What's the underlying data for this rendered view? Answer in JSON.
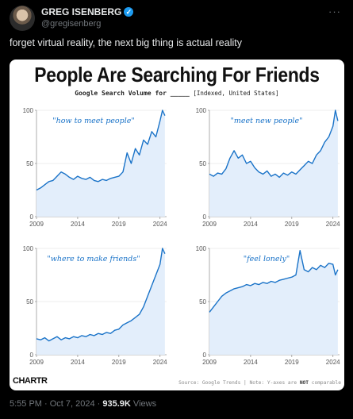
{
  "tweet": {
    "author_name": "GREG ISENBERG",
    "handle": "@gregisenberg",
    "text": "forget virtual reality, the next big thing is actual reality",
    "time": "5:55 PM · Oct 7, 2024 · ",
    "views": "935.9K",
    "views_label": " Views",
    "more_icon": "···",
    "verified_icon": "✓"
  },
  "card": {
    "title": "People Are Searching For Friends",
    "subtitle_main": "Google Search Volume for _____",
    "subtitle_note": "[Indexed, United States]",
    "source": "Source: Google Trends | Note: Y-axes are ",
    "source_not": "NOT",
    "source_end": " comparable",
    "logo": "CHARTR",
    "line_color": "#1a73c8",
    "fill_color": "#e3eefb"
  },
  "chart_data": [
    {
      "type": "area",
      "title": "\"how to meet people\"",
      "x_ticks": [
        "2009",
        "2014",
        "2019",
        "2024"
      ],
      "y_ticks": [
        "0",
        "50",
        "100"
      ],
      "xlim": [
        2009,
        2024.8
      ],
      "ylim": [
        0,
        100
      ],
      "x": [
        2009.0,
        2009.5,
        2010.0,
        2010.5,
        2011.0,
        2011.5,
        2012.0,
        2012.5,
        2013.0,
        2013.5,
        2014.0,
        2014.5,
        2015.0,
        2015.5,
        2016.0,
        2016.5,
        2017.0,
        2017.5,
        2018.0,
        2018.5,
        2019.0,
        2019.5,
        2020.0,
        2020.5,
        2021.0,
        2021.5,
        2022.0,
        2022.5,
        2023.0,
        2023.5,
        2024.0,
        2024.3,
        2024.6
      ],
      "values": [
        25,
        27,
        30,
        33,
        34,
        38,
        42,
        40,
        37,
        35,
        38,
        36,
        35,
        37,
        34,
        33,
        35,
        34,
        36,
        37,
        38,
        42,
        60,
        50,
        64,
        58,
        72,
        68,
        80,
        75,
        90,
        100,
        95
      ]
    },
    {
      "type": "area",
      "title": "\"meet new people\"",
      "x_ticks": [
        "2009",
        "2014",
        "2019",
        "2024"
      ],
      "y_ticks": [
        "0",
        "50",
        "100"
      ],
      "xlim": [
        2009,
        2024.8
      ],
      "ylim": [
        0,
        100
      ],
      "x": [
        2009.0,
        2009.5,
        2010.0,
        2010.5,
        2011.0,
        2011.5,
        2012.0,
        2012.5,
        2013.0,
        2013.5,
        2014.0,
        2014.5,
        2015.0,
        2015.5,
        2016.0,
        2016.5,
        2017.0,
        2017.5,
        2018.0,
        2018.5,
        2019.0,
        2019.5,
        2020.0,
        2020.5,
        2021.0,
        2021.5,
        2022.0,
        2022.5,
        2023.0,
        2023.5,
        2024.0,
        2024.3,
        2024.6
      ],
      "values": [
        40,
        38,
        41,
        40,
        45,
        55,
        62,
        55,
        58,
        50,
        52,
        46,
        42,
        40,
        43,
        38,
        40,
        37,
        41,
        39,
        42,
        40,
        44,
        48,
        52,
        50,
        58,
        62,
        70,
        75,
        85,
        100,
        90
      ]
    },
    {
      "type": "area",
      "title": "\"where to make friends\"",
      "x_ticks": [
        "2009",
        "2014",
        "2019",
        "2024"
      ],
      "y_ticks": [
        "0",
        "50",
        "100"
      ],
      "xlim": [
        2009,
        2024.8
      ],
      "ylim": [
        0,
        100
      ],
      "x": [
        2009.0,
        2009.5,
        2010.0,
        2010.5,
        2011.0,
        2011.5,
        2012.0,
        2012.5,
        2013.0,
        2013.5,
        2014.0,
        2014.5,
        2015.0,
        2015.5,
        2016.0,
        2016.5,
        2017.0,
        2017.5,
        2018.0,
        2018.5,
        2019.0,
        2019.5,
        2020.0,
        2020.5,
        2021.0,
        2021.5,
        2022.0,
        2022.5,
        2023.0,
        2023.5,
        2024.0,
        2024.3,
        2024.6
      ],
      "values": [
        15,
        14,
        16,
        13,
        15,
        17,
        14,
        16,
        15,
        17,
        16,
        18,
        17,
        19,
        18,
        20,
        19,
        21,
        20,
        23,
        24,
        28,
        30,
        32,
        35,
        38,
        45,
        55,
        65,
        75,
        85,
        100,
        95
      ]
    },
    {
      "type": "area",
      "title": "\"feel lonely\"",
      "x_ticks": [
        "2009",
        "2014",
        "2019",
        "2024"
      ],
      "y_ticks": [
        "0",
        "50",
        "100"
      ],
      "xlim": [
        2009,
        2024.8
      ],
      "ylim": [
        0,
        100
      ],
      "x": [
        2009.0,
        2009.5,
        2010.0,
        2010.5,
        2011.0,
        2011.5,
        2012.0,
        2012.5,
        2013.0,
        2013.5,
        2014.0,
        2014.5,
        2015.0,
        2015.5,
        2016.0,
        2016.5,
        2017.0,
        2017.5,
        2018.0,
        2018.5,
        2019.0,
        2019.5,
        2020.0,
        2020.5,
        2021.0,
        2021.5,
        2022.0,
        2022.5,
        2023.0,
        2023.5,
        2024.0,
        2024.3,
        2024.6
      ],
      "values": [
        40,
        45,
        50,
        55,
        58,
        60,
        62,
        63,
        64,
        66,
        65,
        67,
        66,
        68,
        67,
        69,
        68,
        70,
        71,
        72,
        73,
        75,
        98,
        80,
        78,
        82,
        80,
        84,
        82,
        86,
        85,
        75,
        80
      ]
    }
  ]
}
